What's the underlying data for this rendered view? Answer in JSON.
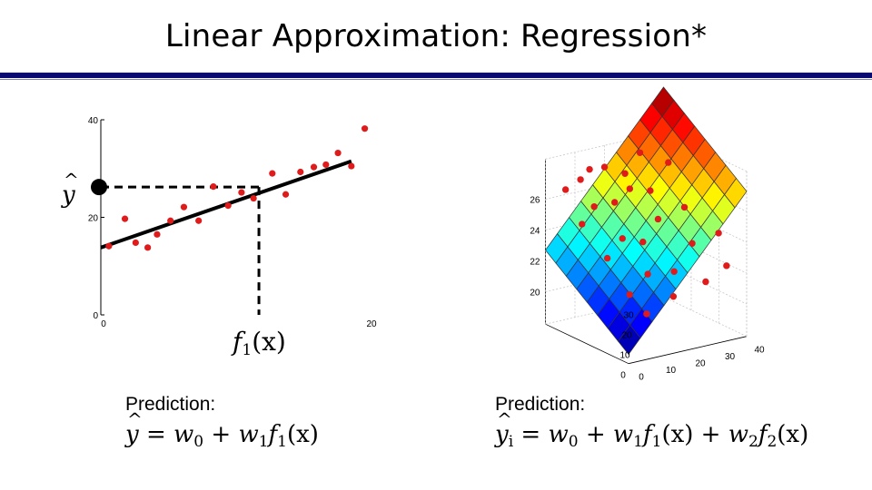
{
  "slide": {
    "title": "Linear Approximation: Regression*",
    "left_prediction_label": "Prediction:",
    "right_prediction_label": "Prediction:",
    "left_formula": {
      "lhs": "y",
      "eq": " = ",
      "w0": "w",
      "w0_sub": "0",
      "plus": " + ",
      "w1": "w",
      "w1_sub": "1",
      "f1": "f",
      "f1_sub": "1",
      "arg": "(x)"
    },
    "right_formula": {
      "lhs": "y",
      "lhs_sub": "i",
      "eq": " = ",
      "w0": "w",
      "w0_sub": "0",
      "plus1": " + ",
      "w1": "w",
      "w1_sub": "1",
      "f1": "f",
      "f1_sub": "1",
      "arg1": "(x)",
      "plus2": " + ",
      "w2": "w",
      "w2_sub": "2",
      "f2": "f",
      "f2_sub": "2",
      "arg2": "(x)"
    }
  },
  "colors": {
    "point": "#e01b1b",
    "fit_line": "#000000",
    "title_rule": "#0a0a73"
  },
  "chart_data": [
    {
      "type": "scatter",
      "title": "",
      "xlabel": "f1(x)",
      "xlabel_parts": {
        "f": "f",
        "sub": "1",
        "arg": "(x)"
      },
      "ylabel": "ŷ",
      "xlim": [
        0,
        20
      ],
      "ylim": [
        0,
        40
      ],
      "x_ticks": [
        0,
        20
      ],
      "y_ticks": [
        0,
        20,
        40
      ],
      "x_tick_labels": [
        "0",
        "20"
      ],
      "y_tick_labels": [
        "0",
        "20",
        "40"
      ],
      "grid": false,
      "points": [
        {
          "x": 0.6,
          "y": 14.1
        },
        {
          "x": 1.8,
          "y": 19.7
        },
        {
          "x": 2.6,
          "y": 14.8
        },
        {
          "x": 3.5,
          "y": 13.8
        },
        {
          "x": 4.2,
          "y": 16.5
        },
        {
          "x": 5.2,
          "y": 19.3
        },
        {
          "x": 6.2,
          "y": 22.1
        },
        {
          "x": 7.3,
          "y": 19.3
        },
        {
          "x": 8.4,
          "y": 26.3
        },
        {
          "x": 9.5,
          "y": 22.4
        },
        {
          "x": 10.5,
          "y": 25.1
        },
        {
          "x": 11.4,
          "y": 23.9
        },
        {
          "x": 12.8,
          "y": 29.0
        },
        {
          "x": 13.8,
          "y": 24.7
        },
        {
          "x": 14.9,
          "y": 29.3
        },
        {
          "x": 15.9,
          "y": 30.3
        },
        {
          "x": 16.8,
          "y": 30.8
        },
        {
          "x": 17.7,
          "y": 33.2
        },
        {
          "x": 18.7,
          "y": 30.5
        },
        {
          "x": 19.7,
          "y": 38.2
        }
      ],
      "fit_line": {
        "x": [
          0,
          18.7
        ],
        "y": [
          13.8,
          31.5
        ]
      },
      "query": {
        "x": 11.8,
        "y": 26.2
      }
    },
    {
      "type": "surface",
      "title": "",
      "x_ticks": [
        0,
        10,
        20,
        30,
        40
      ],
      "y_ticks": [
        0,
        10,
        20,
        30
      ],
      "z_ticks": [
        20,
        22,
        24,
        26
      ],
      "x_tick_labels": [
        "0",
        "10",
        "20",
        "30",
        "40"
      ],
      "y_tick_labels": [
        "0",
        "10",
        "20",
        "30"
      ],
      "z_tick_labels": [
        "20",
        "22",
        "24",
        "26"
      ],
      "colormap": "jet",
      "grid": true,
      "grid_size": [
        10,
        8
      ],
      "plane": {
        "z_at_origin": 18.5,
        "z_gain_from_f1": 0.22,
        "z_gain_from_f2": 0.14
      },
      "points": [
        {
          "x": 4,
          "y": 27,
          "z": 26.7
        },
        {
          "x": 10,
          "y": 28,
          "z": 27.0
        },
        {
          "x": 14,
          "y": 29,
          "z": 27.4
        },
        {
          "x": 20,
          "y": 30,
          "z": 27.2
        },
        {
          "x": 26,
          "y": 29,
          "z": 26.6
        },
        {
          "x": 32,
          "y": 30,
          "z": 27.6
        },
        {
          "x": 3,
          "y": 20,
          "z": 25.1
        },
        {
          "x": 9,
          "y": 22,
          "z": 25.8
        },
        {
          "x": 15,
          "y": 21,
          "z": 25.9
        },
        {
          "x": 22,
          "y": 23,
          "z": 26.3
        },
        {
          "x": 28,
          "y": 22,
          "z": 26.0
        },
        {
          "x": 36,
          "y": 24,
          "z": 27.3
        },
        {
          "x": 5,
          "y": 13,
          "z": 23.4
        },
        {
          "x": 12,
          "y": 15,
          "z": 24.2
        },
        {
          "x": 18,
          "y": 14,
          "z": 23.8
        },
        {
          "x": 25,
          "y": 16,
          "z": 24.8
        },
        {
          "x": 33,
          "y": 15,
          "z": 25.3
        },
        {
          "x": 6,
          "y": 6,
          "z": 21.6
        },
        {
          "x": 14,
          "y": 8,
          "z": 22.4
        },
        {
          "x": 22,
          "y": 7,
          "z": 22.3
        },
        {
          "x": 30,
          "y": 9,
          "z": 23.6
        },
        {
          "x": 38,
          "y": 8,
          "z": 24.0
        },
        {
          "x": 8,
          "y": 2,
          "z": 20.6
        },
        {
          "x": 18,
          "y": 3,
          "z": 21.2
        },
        {
          "x": 28,
          "y": 2,
          "z": 21.8
        },
        {
          "x": 36,
          "y": 3,
          "z": 22.4
        }
      ]
    }
  ]
}
